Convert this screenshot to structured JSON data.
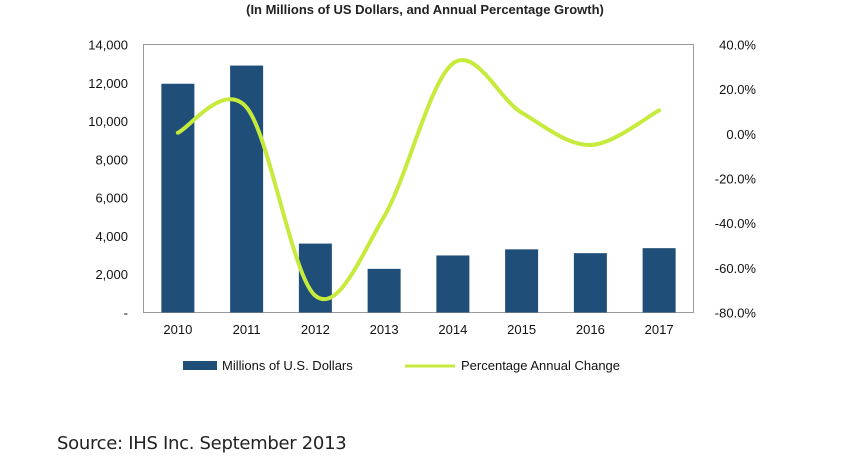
{
  "chart_data": {
    "type": "bar+line",
    "subtitle": "(In Millions of US Dollars, and Annual Percentage Growth)",
    "categories": [
      "2010",
      "2011",
      "2012",
      "2013",
      "2014",
      "2015",
      "2016",
      "2017"
    ],
    "series": [
      {
        "name": "Millions of U.S. Dollars",
        "type": "bar",
        "axis": "left",
        "color": "#1f4e79",
        "values": [
          11950,
          12900,
          3600,
          2280,
          2980,
          3300,
          3100,
          3360
        ]
      },
      {
        "name": "Percentage Annual Change",
        "type": "line",
        "axis": "right",
        "smooth": true,
        "color": "#c6eb3c",
        "values": [
          0.5,
          11.8,
          -72.5,
          -37.0,
          31.5,
          9.5,
          -5.0,
          10.5
        ]
      }
    ],
    "left_axis": {
      "ylim": [
        0,
        14000
      ],
      "tick_labels": [
        "-",
        "2,000",
        "4,000",
        "6,000",
        "8,000",
        "10,000",
        "12,000",
        "14,000"
      ]
    },
    "right_axis": {
      "ylim": [
        -80,
        40
      ],
      "tick_labels": [
        "-80.0%",
        "-60.0%",
        "-40.0%",
        "-20.0%",
        "0.0%",
        "20.0%",
        "40.0%"
      ]
    },
    "grid": false,
    "legend": "bottom"
  },
  "source": "Source: IHS Inc. September 2013"
}
